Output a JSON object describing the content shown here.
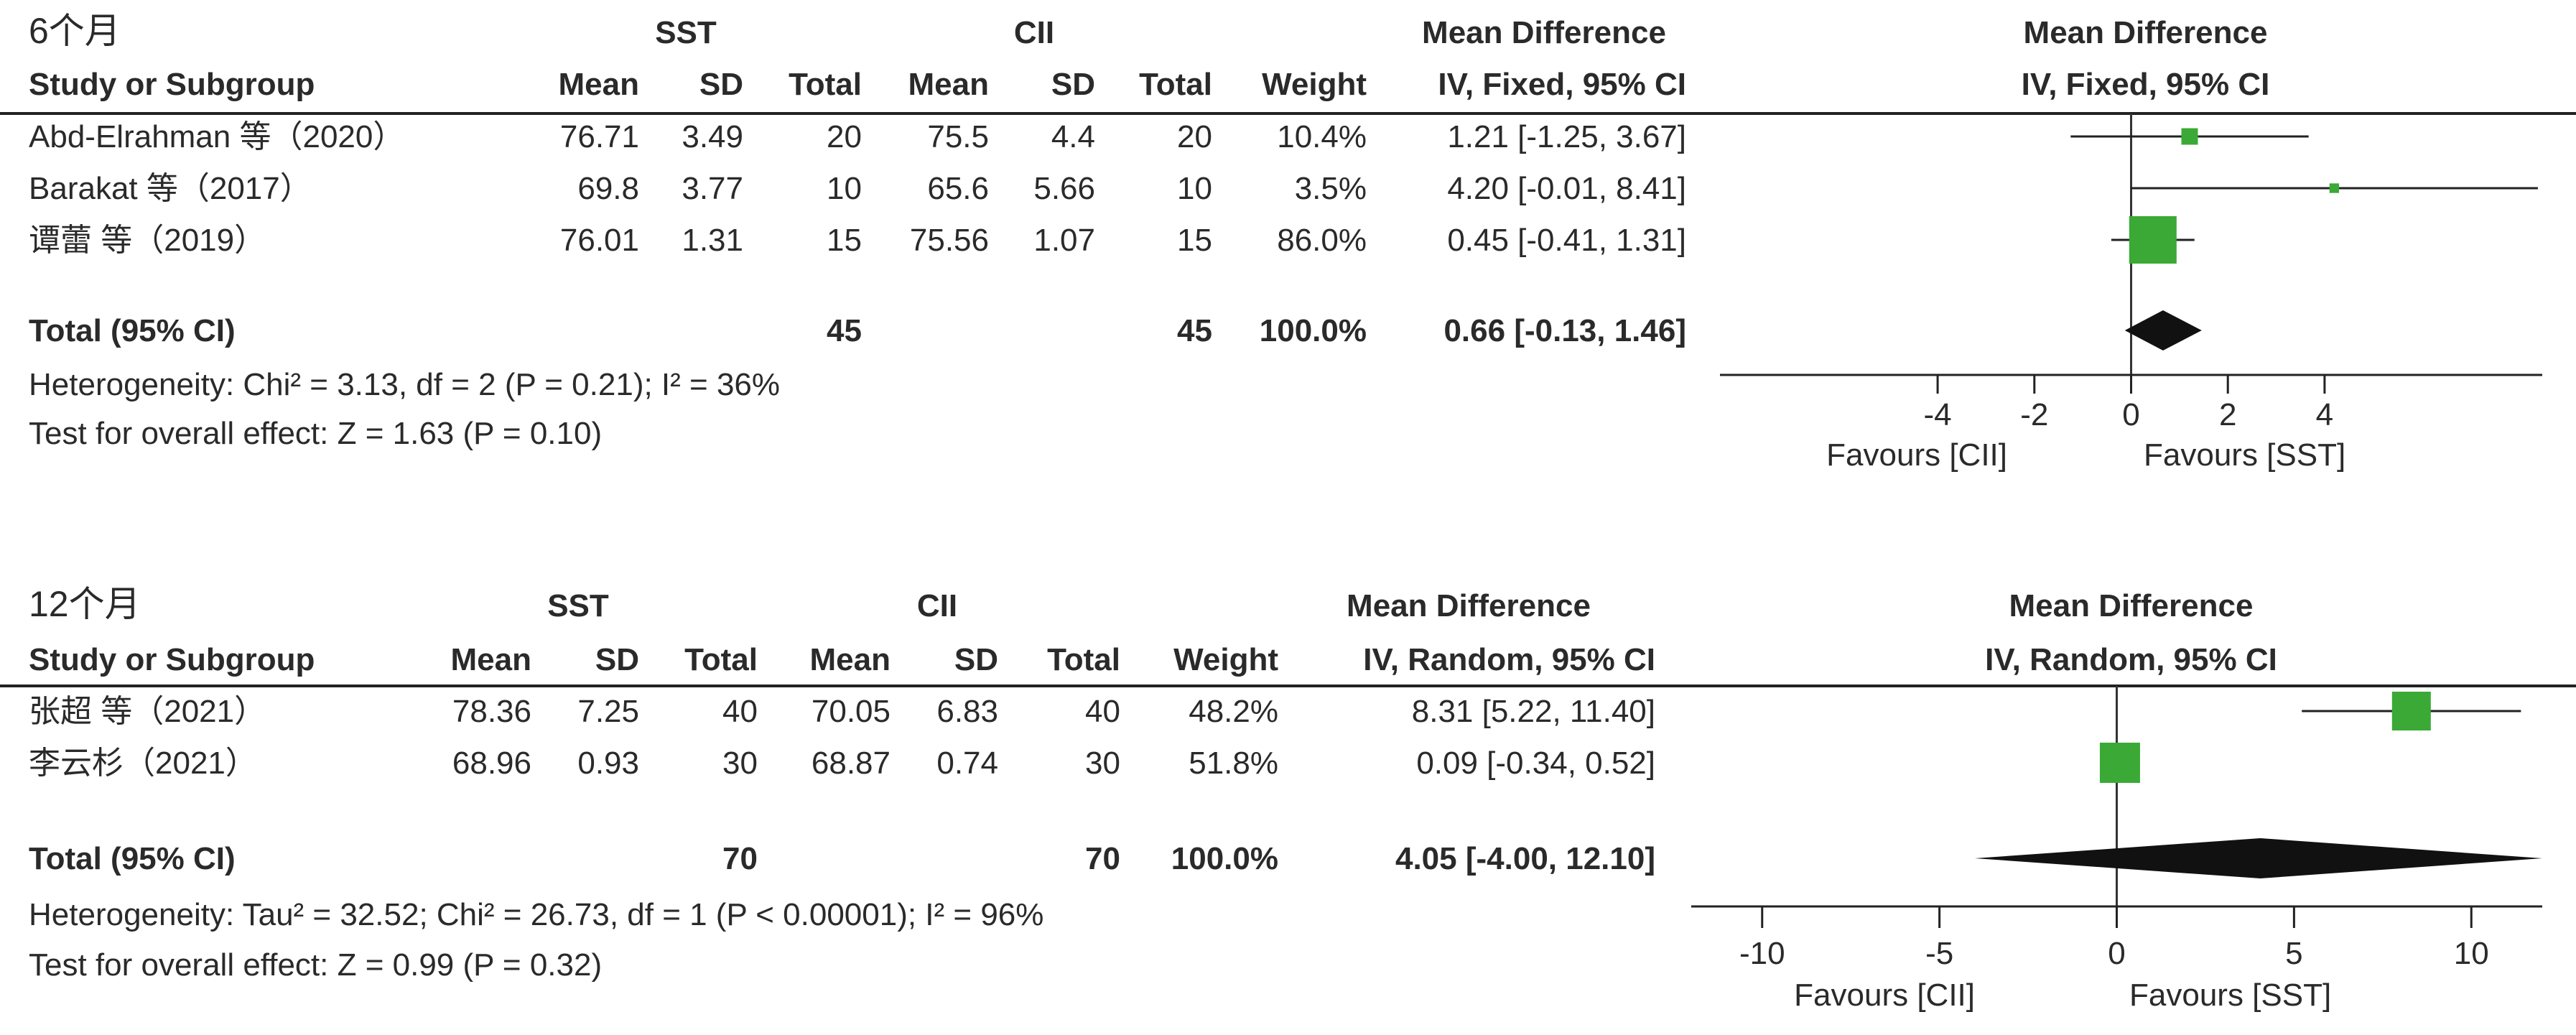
{
  "chart_data": [
    {
      "type": "forest",
      "panel_label": "6个月",
      "group_labels": {
        "experimental": "SST",
        "control": "CII"
      },
      "headers": {
        "study": "Study or Subgroup",
        "mean": "Mean",
        "sd": "SD",
        "total": "Total",
        "weight": "Weight",
        "effect_title": "Mean Difference",
        "effect_method": "IV, Fixed, 95% CI"
      },
      "studies": [
        {
          "study": "Abd-Elrahman 等（2020）",
          "e_mean": "76.71",
          "e_sd": "3.49",
          "e_total": "20",
          "c_mean": "75.5",
          "c_sd": "4.4",
          "c_total": "20",
          "weight": "10.4%",
          "ci_text": "1.21 [-1.25, 3.67]",
          "md": 1.21,
          "lo": -1.25,
          "hi": 3.67,
          "w": 10.4
        },
        {
          "study": "Barakat 等（2017）",
          "e_mean": "69.8",
          "e_sd": "3.77",
          "e_total": "10",
          "c_mean": "65.6",
          "c_sd": "5.66",
          "c_total": "10",
          "weight": "3.5%",
          "ci_text": "4.20 [-0.01, 8.41]",
          "md": 4.2,
          "lo": -0.01,
          "hi": 8.41,
          "w": 3.5
        },
        {
          "study": "谭蕾 等（2019）",
          "e_mean": "76.01",
          "e_sd": "1.31",
          "e_total": "15",
          "c_mean": "75.56",
          "c_sd": "1.07",
          "c_total": "15",
          "weight": "86.0%",
          "ci_text": "0.45 [-0.41, 1.31]",
          "md": 0.45,
          "lo": -0.41,
          "hi": 1.31,
          "w": 86.0
        }
      ],
      "total": {
        "label": "Total (95% CI)",
        "e_total": "45",
        "c_total": "45",
        "weight": "100.0%",
        "ci_text": "0.66 [-0.13, 1.46]",
        "md": 0.66,
        "lo": -0.13,
        "hi": 1.46
      },
      "heterogeneity": "Heterogeneity: Chi² = 3.13, df = 2 (P = 0.21); I² = 36%",
      "overall_effect": "Test for overall effect: Z = 1.63 (P = 0.10)",
      "x_ticks": [
        "-4",
        "-2",
        "0",
        "2",
        "4"
      ],
      "x_tick_values": [
        -4,
        -2,
        0,
        2,
        4
      ],
      "xlim": [
        -8.5,
        8.5
      ],
      "favours_left": "Favours [CII]",
      "favours_right": "Favours [SST]",
      "marker_color": "#3aa935",
      "diamond_color": "#111111"
    },
    {
      "type": "forest",
      "panel_label": "12个月",
      "group_labels": {
        "experimental": "SST",
        "control": "CII"
      },
      "headers": {
        "study": "Study or Subgroup",
        "mean": "Mean",
        "sd": "SD",
        "total": "Total",
        "weight": "Weight",
        "effect_title": "Mean Difference",
        "effect_method": "IV, Random, 95% CI"
      },
      "studies": [
        {
          "study": "张超 等（2021）",
          "e_mean": "78.36",
          "e_sd": "7.25",
          "e_total": "40",
          "c_mean": "70.05",
          "c_sd": "6.83",
          "c_total": "40",
          "weight": "48.2%",
          "ci_text": "8.31 [5.22, 11.40]",
          "md": 8.31,
          "lo": 5.22,
          "hi": 11.4,
          "w": 48.2
        },
        {
          "study": "李云杉（2021）",
          "e_mean": "68.96",
          "e_sd": "0.93",
          "e_total": "30",
          "c_mean": "68.87",
          "c_sd": "0.74",
          "c_total": "30",
          "weight": "51.8%",
          "ci_text": "0.09 [-0.34, 0.52]",
          "md": 0.09,
          "lo": -0.34,
          "hi": 0.52,
          "w": 51.8
        }
      ],
      "total": {
        "label": "Total (95% CI)",
        "e_total": "70",
        "c_total": "70",
        "weight": "100.0%",
        "ci_text": "4.05 [-4.00, 12.10]",
        "md": 4.05,
        "lo": -4.0,
        "hi": 12.1
      },
      "heterogeneity": "Heterogeneity: Tau² = 32.52; Chi² = 26.73, df = 1 (P < 0.00001); I² = 96%",
      "overall_effect": "Test for overall effect: Z = 0.99 (P = 0.32)",
      "x_ticks": [
        "-10",
        "-5",
        "0",
        "5",
        "10"
      ],
      "x_tick_values": [
        -10,
        -5,
        0,
        5,
        10
      ],
      "xlim": [
        -12,
        12
      ],
      "favours_left": "Favours [CII]",
      "favours_right": "Favours [SST]",
      "marker_color": "#3aa935",
      "diamond_color": "#111111"
    }
  ]
}
